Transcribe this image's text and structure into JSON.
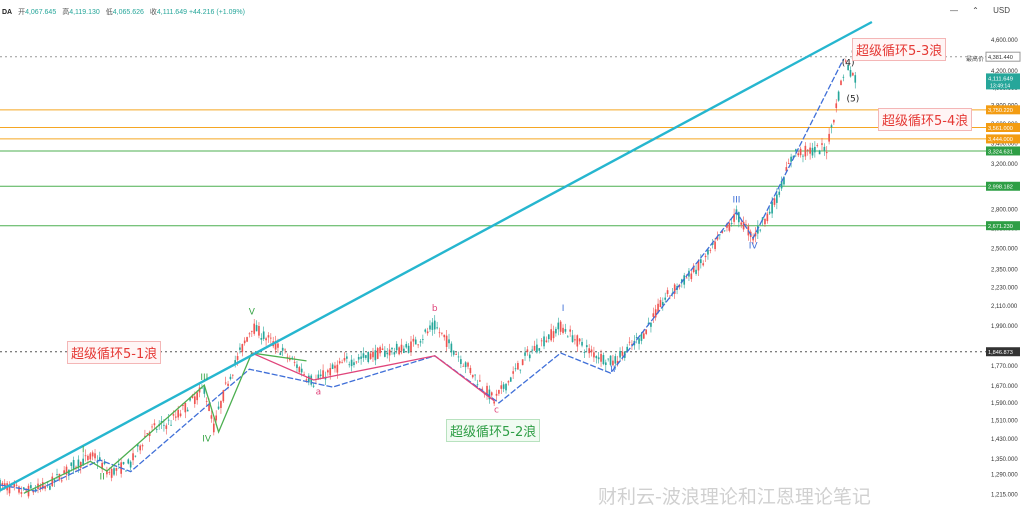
{
  "header": {
    "symbol_fragment": "DA",
    "open_label": "开",
    "open": "4,067.645",
    "high_label": "高",
    "high": "4,119.130",
    "low_label": "低",
    "low": "4,065.626",
    "close_label": "收",
    "close": "4,111.649",
    "change": "+44.216 (+1.09%)",
    "currency": "USD",
    "icons": [
      "minus-icon",
      "chevron-up-icon",
      "currency-label"
    ]
  },
  "annotations": {
    "wave1": "超级循环5-1浪",
    "wave2": "超级循环5-2浪",
    "wave3": "超级循环5-3浪",
    "wave4": "超级循环5-4浪",
    "high_tag_label": "最高价",
    "watermark": "财利云-波浪理论和江恩理论笔记"
  },
  "colors": {
    "candle_up": "#26a69a",
    "candle_down": "#ef5350",
    "trendline": "#26b6cf",
    "wave_blue": "#3f6fd8",
    "wave_green": "#4caf50",
    "wave_red": "#e0457b",
    "level_orange": "#f5a623",
    "level_green": "#4caf50"
  },
  "chart_data": {
    "type": "line",
    "scale": "log",
    "ylim": [
      1145,
      4850
    ],
    "y_ticks": [
      1215,
      1290,
      1350,
      1430,
      1510,
      1590,
      1670,
      1770,
      1990,
      2110,
      2230,
      2350,
      2500,
      2650,
      2800,
      3000,
      3200,
      3400,
      3600,
      3800,
      4000,
      4200,
      4400,
      4600
    ],
    "y_tick_labels": [
      "1,215.000",
      "1,290.000",
      "1,350.000",
      "1,430.000",
      "1,510.000",
      "1,590.000",
      "1,670.000",
      "1,770.000",
      "1,990.000",
      "2,110.000",
      "2,230.000",
      "2,350.000",
      "2,500.000",
      "2,650.000",
      "2,800.000",
      "3,000.000",
      "3,200.000",
      "3,400.000",
      "3,600.000",
      "3,800.000",
      "4,000.000",
      "4,200.000",
      "4,400.000",
      "4,600.000"
    ],
    "bar_index_range": [
      0,
      430
    ],
    "series": [
      {
        "style": "wave_blue",
        "points": [
          [
            0,
            1250
          ],
          [
            15,
            1228
          ],
          [
            42,
            1345
          ],
          [
            55,
            1300
          ],
          [
            105,
            1755
          ],
          [
            140,
            1665
          ],
          [
            183,
            1825
          ],
          [
            210,
            1590
          ],
          [
            236,
            1840
          ],
          [
            257,
            1735
          ],
          [
            310,
            2780
          ],
          [
            317,
            2575
          ],
          [
            355,
            4350
          ]
        ]
      },
      {
        "style": "wave_green",
        "points": [
          [
            10,
            1220
          ],
          [
            38,
            1340
          ],
          [
            45,
            1302
          ],
          [
            86,
            1675
          ],
          [
            92,
            1460
          ],
          [
            106,
            1840
          ],
          [
            129,
            1798
          ]
        ]
      },
      {
        "style": "wave_red",
        "points": [
          [
            106,
            1840
          ],
          [
            132,
            1700
          ],
          [
            183,
            1825
          ],
          [
            208,
            1600
          ]
        ]
      },
      {
        "style": "trendline",
        "points": [
          [
            0,
            1230
          ],
          [
            367,
            4850
          ]
        ]
      }
    ],
    "horizontal_levels": [
      {
        "value": 3750.22,
        "label": "3,750.220",
        "color": "orange",
        "tag": true
      },
      {
        "value": 3561.0,
        "label": "3,561.000",
        "color": "orange",
        "tag": true
      },
      {
        "value": 3444.0,
        "label": "3,444.000",
        "color": "orange",
        "tag": true
      },
      {
        "value": 3324.631,
        "label": "3,324.631",
        "color": "green",
        "tag": true
      },
      {
        "value": 2998.182,
        "label": "2,998.182",
        "color": "green",
        "tag": true
      },
      {
        "value": 2671.23,
        "label": "2,671.230",
        "color": "green",
        "tag": true
      },
      {
        "value": 4381.44,
        "label": "4,381.440",
        "color": "gray",
        "tag": true,
        "dashed": true
      },
      {
        "value": 1846.873,
        "label": "1,846.873",
        "color": "dark",
        "tag": true,
        "dashed": true
      }
    ],
    "current_price": {
      "value": 4111.649,
      "label": "4,111.649",
      "sub": "13:49:14"
    },
    "wave_labels": [
      {
        "text": "I",
        "x": 35,
        "y": 1375,
        "color": "green",
        "above": true
      },
      {
        "text": "II",
        "x": 43,
        "y": 1270,
        "color": "green",
        "above": false
      },
      {
        "text": "III",
        "x": 86,
        "y": 1700,
        "color": "green",
        "above": true
      },
      {
        "text": "IV",
        "x": 87,
        "y": 1420,
        "color": "green",
        "above": false
      },
      {
        "text": "V",
        "x": 106,
        "y": 2060,
        "color": "green",
        "above": true
      },
      {
        "text": "a",
        "x": 134,
        "y": 1630,
        "color": "red",
        "above": false
      },
      {
        "text": "b",
        "x": 183,
        "y": 2080,
        "color": "red",
        "above": true
      },
      {
        "text": "c",
        "x": 209,
        "y": 1545,
        "color": "red",
        "above": false
      },
      {
        "text": "I",
        "x": 237,
        "y": 2080,
        "color": "blue",
        "above": true
      },
      {
        "text": "II",
        "x": 258,
        "y": 1740,
        "color": "blue",
        "above": false
      },
      {
        "text": "III",
        "x": 310,
        "y": 2860,
        "color": "blue",
        "above": true
      },
      {
        "text": "IV",
        "x": 317,
        "y": 2500,
        "color": "blue",
        "above": false
      },
      {
        "text": "(C)",
        "x": 361,
        "y": 4410,
        "color": "dark",
        "above": true
      },
      {
        "text": "(4)",
        "x": 357,
        "y": 4270,
        "color": "dark",
        "above": true
      },
      {
        "text": "(5)",
        "x": 359,
        "y": 3840,
        "color": "dark",
        "above": false
      }
    ],
    "candle_anchors": [
      [
        0,
        1250
      ],
      [
        10,
        1225
      ],
      [
        20,
        1245
      ],
      [
        32,
        1330
      ],
      [
        40,
        1360
      ],
      [
        46,
        1295
      ],
      [
        55,
        1330
      ],
      [
        62,
        1460
      ],
      [
        72,
        1505
      ],
      [
        80,
        1590
      ],
      [
        86,
        1660
      ],
      [
        90,
        1480
      ],
      [
        96,
        1700
      ],
      [
        106,
        1990
      ],
      [
        118,
        1860
      ],
      [
        132,
        1690
      ],
      [
        145,
        1790
      ],
      [
        160,
        1840
      ],
      [
        172,
        1870
      ],
      [
        183,
        1990
      ],
      [
        196,
        1780
      ],
      [
        208,
        1600
      ],
      [
        222,
        1830
      ],
      [
        236,
        1990
      ],
      [
        248,
        1850
      ],
      [
        258,
        1790
      ],
      [
        270,
        1930
      ],
      [
        280,
        2160
      ],
      [
        296,
        2400
      ],
      [
        310,
        2760
      ],
      [
        317,
        2580
      ],
      [
        326,
        2850
      ],
      [
        334,
        3300
      ],
      [
        348,
        3350
      ],
      [
        356,
        4300
      ],
      [
        360,
        4111.649
      ]
    ]
  }
}
